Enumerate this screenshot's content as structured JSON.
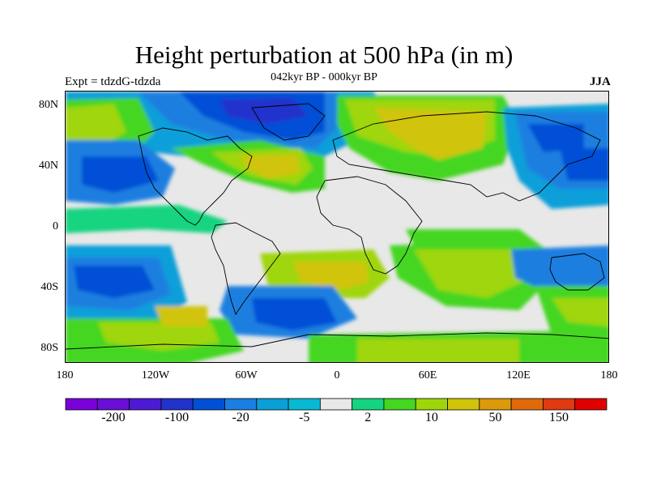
{
  "title": "Height perturbation at 500 hPa (in m)",
  "subtitle": "042kyr BP - 000kyr BP",
  "experiment": "Expt = tdzdG-tdzda",
  "season": "JJA",
  "latitude_labels": [
    "80N",
    "40N",
    "0",
    "40S",
    "80S"
  ],
  "longitude_labels": [
    "180",
    "120W",
    "60W",
    "0",
    "60E",
    "120E",
    "180"
  ],
  "colorbar": {
    "colors": [
      "#7a00d9",
      "#6a0fd6",
      "#4d1ad4",
      "#2233cc",
      "#0050d6",
      "#1a7fe0",
      "#0a9fd9",
      "#08b9d4",
      "#e8e8e8",
      "#14d480",
      "#44d620",
      "#9fd60a",
      "#d0c40a",
      "#dc9a0a",
      "#e06a0a",
      "#e03a10",
      "#e00000"
    ],
    "tick_labels": [
      "-200",
      "-100",
      "-20",
      "-5",
      "2",
      "10",
      "50",
      "150"
    ]
  },
  "colors": {
    "neutral": "#e8e8e8",
    "land_outline": "#000000"
  }
}
